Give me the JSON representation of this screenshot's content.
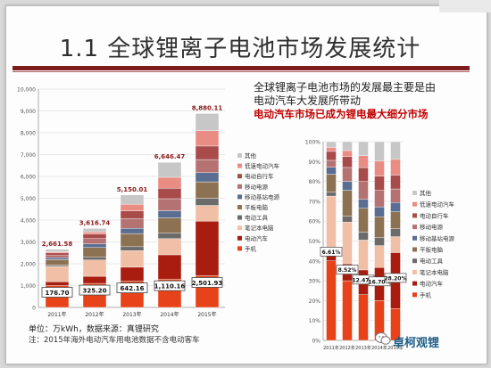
{
  "slide": {
    "title": "1.1 全球锂离子电池市场发展统计",
    "desc_line1": "全球锂离子电池市场的发展最主要是由",
    "desc_line2": "电动汽车大发展所带动",
    "highlight": "电动汽车市场已成为锂电最大细分市场",
    "footnote_unit": "单位：万kWh，数据来源：真锂研究",
    "footnote_note": "注：2015年海外电动汽车用电池数据不含电动客车",
    "watermark": "卓柯观锂"
  },
  "chart_data": [
    {
      "type": "bar",
      "stacked": true,
      "categories": [
        "2011年",
        "2012年",
        "2013年",
        "2014年",
        "2015年"
      ],
      "ylim": [
        0,
        10000
      ],
      "yticks": [
        0,
        1000,
        2000,
        3000,
        4000,
        5000,
        6000,
        7000,
        8000,
        9000,
        10000
      ],
      "ytick_labels": [
        "0",
        "1,000",
        "2,000",
        "3,000",
        "4,000",
        "5,000",
        "6,000",
        "7,000",
        "8,000",
        "9,000",
        "10,000"
      ],
      "totals": [
        2661.58,
        3616.74,
        5150.01,
        6646.47,
        8880.11
      ],
      "total_labels": [
        "2,661.58",
        "3,616.74",
        "5,150.01",
        "6,646.47",
        "8,880.11"
      ],
      "ev_values": [
        176.7,
        325.2,
        642.16,
        1110.16,
        2501.93
      ],
      "ev_labels": [
        "176.70",
        "325.20",
        "642.16",
        "1,110.16",
        "2,501.93"
      ],
      "series": [
        {
          "name": "手机",
          "color": "#e8421a",
          "values": [
            1000,
            1100,
            1200,
            1300,
            1450
          ]
        },
        {
          "name": "电动汽车",
          "color": "#a81d10",
          "values": [
            176.7,
            325.2,
            642.16,
            1110.16,
            2501.93
          ]
        },
        {
          "name": "笔记本电脑",
          "color": "#f1bfa6",
          "values": [
            700,
            750,
            760,
            740,
            720
          ]
        },
        {
          "name": "电动工具",
          "color": "#6b6b6b",
          "values": [
            60,
            120,
            180,
            250,
            330
          ]
        },
        {
          "name": "平板电脑",
          "color": "#8c7252",
          "values": [
            250,
            450,
            600,
            700,
            750
          ]
        },
        {
          "name": "移动基站电源",
          "color": "#5a6e93",
          "values": [
            90,
            160,
            240,
            330,
            420
          ]
        },
        {
          "name": "移动电源",
          "color": "#b57272",
          "values": [
            100,
            250,
            450,
            550,
            600
          ]
        },
        {
          "name": "电动自行车",
          "color": "#a94b4b",
          "values": [
            120,
            200,
            350,
            480,
            620
          ]
        },
        {
          "name": "低速电动汽车",
          "color": "#e98c84",
          "values": [
            50,
            100,
            300,
            500,
            700
          ]
        },
        {
          "name": "其他",
          "color": "#c7c7c7",
          "values": [
            114.88,
            161.54,
            427.85,
            686.31,
            788.18
          ]
        }
      ],
      "legend": [
        "其他",
        "低速电动汽车",
        "电动自行车",
        "移动电源",
        "移动基站电源",
        "平板电脑",
        "电动工具",
        "笔记本电脑",
        "电动汽车",
        "手机"
      ]
    },
    {
      "type": "bar",
      "stacked": true,
      "percent": true,
      "categories": [
        "2011年",
        "2012年",
        "2013年",
        "2014年",
        "2015年"
      ],
      "ylim": [
        0,
        100
      ],
      "yticks": [
        0,
        10,
        20,
        30,
        40,
        50,
        60,
        70,
        80,
        90,
        100
      ],
      "ytick_labels": [
        "0%",
        "10%",
        "20%",
        "30%",
        "40%",
        "50%",
        "60%",
        "70%",
        "80%",
        "90%",
        "100%"
      ],
      "ev_share": [
        6.61,
        8.52,
        12.47,
        16.7,
        28.2
      ],
      "ev_share_labels": [
        "6.61%",
        "8.52%",
        "12.47%",
        "16.70%",
        "28.20%"
      ],
      "series": [
        {
          "name": "手机",
          "color": "#e8421a",
          "values": [
            40,
            30,
            23,
            20,
            16
          ]
        },
        {
          "name": "电动汽车",
          "color": "#a81d10",
          "values": [
            6.61,
            8.52,
            12.47,
            16.7,
            28.2
          ]
        },
        {
          "name": "笔记本电脑",
          "color": "#f1bfa6",
          "values": [
            26,
            21,
            15,
            11,
            8
          ]
        },
        {
          "name": "电动工具",
          "color": "#6b6b6b",
          "values": [
            2,
            3,
            4,
            4,
            4
          ]
        },
        {
          "name": "平板电脑",
          "color": "#8c7252",
          "values": [
            9,
            13,
            12,
            10.5,
            8.5
          ]
        },
        {
          "name": "移动基站电源",
          "color": "#5a6e93",
          "values": [
            3.5,
            4.5,
            4.5,
            5,
            4.7
          ]
        },
        {
          "name": "移动电源",
          "color": "#b57272",
          "values": [
            3.5,
            7,
            9,
            8.3,
            6.8
          ]
        },
        {
          "name": "电动自行车",
          "color": "#a94b4b",
          "values": [
            4.5,
            5.5,
            7,
            7.2,
            7
          ]
        },
        {
          "name": "低速电动汽车",
          "color": "#e98c84",
          "values": [
            2,
            3,
            6,
            7.5,
            7.9
          ]
        },
        {
          "name": "其他",
          "color": "#c7c7c7",
          "values": [
            2.89,
            4.48,
            7.03,
            9.8,
            8.9
          ]
        }
      ],
      "legend": [
        "其他",
        "低速电动汽车",
        "电动自行车",
        "移动电源",
        "移动基站电源",
        "平板电脑",
        "电动工具",
        "笔记本电脑",
        "电动汽车",
        "手机"
      ]
    }
  ]
}
